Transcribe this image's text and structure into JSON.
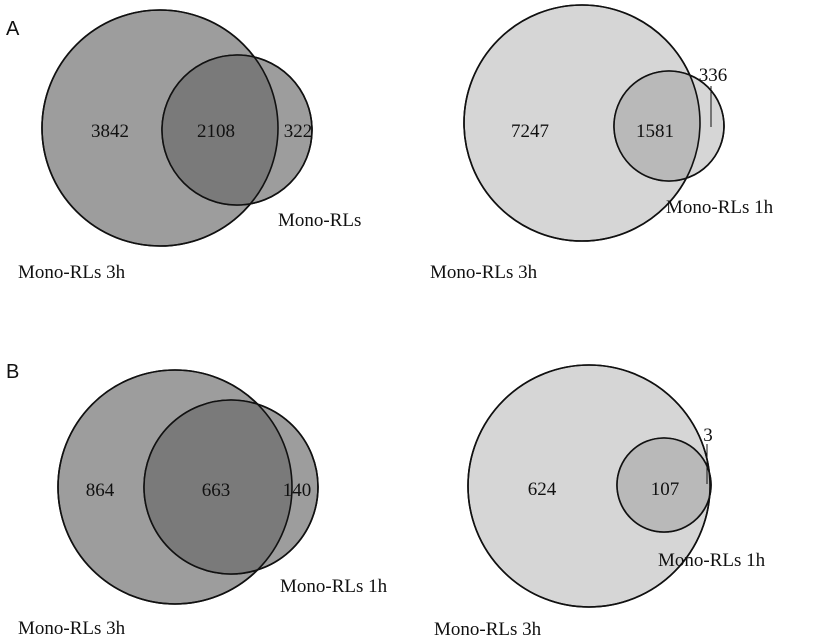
{
  "colors": {
    "dark_fill": "#9d9d9d",
    "overlap_dark": "#7a7a7a",
    "light_fill": "#d6d6d6",
    "overlap_light": "#b9b9b9",
    "stroke": "#111111"
  },
  "panels": [
    {
      "letter": "A",
      "diagrams": [
        {
          "style": "dark",
          "big_label": "Mono-RLs 3h",
          "small_label": "Mono-RLs",
          "counts": {
            "big_only": "3842",
            "overlap": "2108",
            "small_only": "322"
          }
        },
        {
          "style": "light",
          "big_label": "Mono-RLs 3h",
          "small_label": "Mono-RLs 1h",
          "counts": {
            "big_only": "7247",
            "overlap": "1581",
            "small_only": "336"
          }
        }
      ]
    },
    {
      "letter": "B",
      "diagrams": [
        {
          "style": "dark",
          "big_label": "Mono-RLs 3h",
          "small_label": "Mono-RLs 1h",
          "counts": {
            "big_only": "864",
            "overlap": "663",
            "small_only": "140"
          }
        },
        {
          "style": "light",
          "big_label": "Mono-RLs 3h",
          "small_label": "Mono-RLs 1h",
          "counts": {
            "big_only": "624",
            "overlap": "107",
            "small_only": "3"
          }
        }
      ]
    }
  ]
}
